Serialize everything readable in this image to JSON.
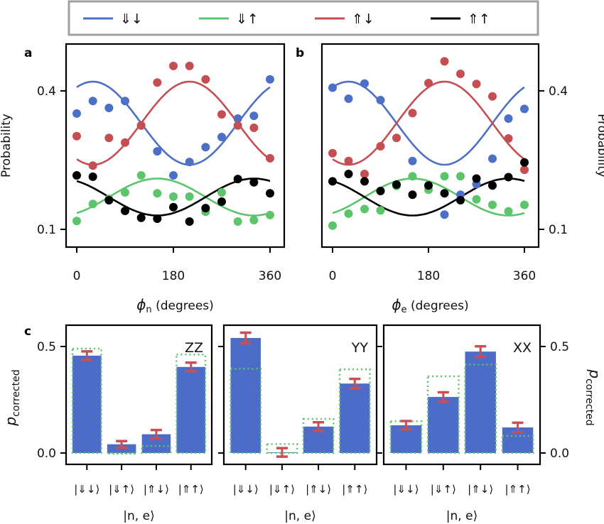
{
  "colors": {
    "blue": "#4c70c6",
    "green": "#5cc46a",
    "red": "#c44e52",
    "black": "#000000",
    "bar": "#4c6cc8",
    "err": "#c84f54",
    "ideal": "#5cc46a"
  },
  "legend": [
    {
      "label": "⇓↓",
      "color": "#4c70c6"
    },
    {
      "label": "⇓↑",
      "color": "#5cc46a"
    },
    {
      "label": "⇑↓",
      "color": "#c44e52"
    },
    {
      "label": "⇑↑",
      "color": "#000000"
    }
  ],
  "chart_data": [
    {
      "panel": "a",
      "type": "scatter+line",
      "xlabel_sym": "ϕ",
      "xlabel_sub": "n",
      "xlabel_rest": " (degrees)",
      "ylabel": "Probability",
      "xlim": [
        0,
        360
      ],
      "xticks": [
        "0",
        "180",
        "360"
      ],
      "yticks": [
        "0.4",
        "0.1"
      ],
      "ytick_values": [
        0.4,
        0.1
      ],
      "x": [
        0,
        30,
        60,
        90,
        120,
        150,
        180,
        210,
        240,
        270,
        300,
        330,
        360
      ],
      "series": [
        {
          "name": "⇓↓",
          "values": [
            0.351,
            0.378,
            0.363,
            0.378,
            0.325,
            0.269,
            0.217,
            0.246,
            0.278,
            0.3,
            0.34,
            0.346,
            0.425
          ],
          "fit": {
            "offset": 0.33,
            "amp": 0.09,
            "phase": 30
          }
        },
        {
          "name": "⇓↑",
          "values": [
            0.118,
            0.155,
            0.166,
            0.18,
            0.217,
            0.178,
            0.171,
            0.171,
            0.138,
            0.18,
            0.117,
            0.12,
            0.131
          ],
          "fit": {
            "offset": 0.17,
            "amp": 0.04,
            "phase": 150
          }
        },
        {
          "name": "⇑↓",
          "values": [
            0.302,
            0.238,
            0.298,
            0.288,
            0.325,
            0.418,
            0.454,
            0.454,
            0.425,
            0.349,
            0.325,
            0.32,
            0.254
          ],
          "fit": {
            "offset": 0.33,
            "amp": -0.09,
            "phase": 30
          }
        },
        {
          "name": "⇑↑",
          "values": [
            0.217,
            0.214,
            0.163,
            0.14,
            0.125,
            0.123,
            0.148,
            0.117,
            0.146,
            0.16,
            0.209,
            0.202,
            0.178
          ],
          "fit": {
            "offset": 0.17,
            "amp": -0.04,
            "phase": 150
          }
        }
      ]
    },
    {
      "panel": "b",
      "type": "scatter+line",
      "xlabel_sym": "ϕ",
      "xlabel_sub": "e",
      "xlabel_rest": " (degrees)",
      "ylabel": "Probability",
      "xlim": [
        0,
        360
      ],
      "xticks": [
        "0",
        "180",
        "360"
      ],
      "yticks": [
        "0.4",
        "0.1"
      ],
      "ytick_values": [
        0.4,
        0.1
      ],
      "x": [
        0,
        30,
        60,
        90,
        120,
        150,
        180,
        210,
        240,
        270,
        300,
        330,
        360
      ],
      "series": [
        {
          "name": "⇓↓",
          "values": [
            0.407,
            0.383,
            0.416,
            0.38,
            null,
            0.248,
            null,
            0.132,
            0.175,
            0.198,
            0.253,
            0.34,
            0.361
          ],
          "fit": {
            "offset": 0.33,
            "amp": 0.09,
            "phase": 30
          }
        },
        {
          "name": "⇓↑",
          "values": [
            0.108,
            0.134,
            0.144,
            0.141,
            0.194,
            0.215,
            0.186,
            0.215,
            0.215,
            0.165,
            0.153,
            0.139,
            0.153
          ],
          "fit": {
            "offset": 0.17,
            "amp": 0.04,
            "phase": 150
          }
        },
        {
          "name": "⇑↓",
          "values": [
            0.265,
            0.248,
            0.22,
            0.28,
            0.298,
            0.352,
            0.417,
            0.464,
            0.437,
            0.415,
            0.388,
            0.297,
            0.229
          ],
          "fit": {
            "offset": 0.33,
            "amp": -0.09,
            "phase": 30
          }
        },
        {
          "name": "⇑↑",
          "values": [
            0.204,
            0.22,
            0.204,
            0.183,
            0.197,
            0.175,
            0.195,
            0.178,
            0.163,
            0.21,
            0.195,
            0.213,
            0.245
          ],
          "fit": {
            "offset": 0.17,
            "amp": -0.04,
            "phase": 150
          }
        }
      ]
    },
    {
      "panel": "c",
      "type": "bar",
      "ylabel_main": "p",
      "ylabel_sub": "corrected",
      "xlabel": "|n, e⟩",
      "categories": [
        "|⇓↓⟩",
        "|⇓↑⟩",
        "|⇑↓⟩",
        "|⇑↑⟩"
      ],
      "yticks": [
        "0.5",
        "0.0"
      ],
      "ytick_values": [
        0.5,
        0.0
      ],
      "groups": [
        {
          "name": "ZZ",
          "values": [
            0.457,
            0.041,
            0.088,
            0.404
          ],
          "errors": [
            0.02,
            0.015,
            0.02,
            0.02
          ],
          "ideal": [
            0.49,
            0.0,
            0.033,
            0.462
          ]
        },
        {
          "name": "YY",
          "values": [
            0.54,
            0.003,
            0.124,
            0.326
          ],
          "errors": [
            0.025,
            0.02,
            0.02,
            0.022
          ],
          "ideal": [
            0.396,
            0.042,
            0.16,
            0.393
          ]
        },
        {
          "name": "XX",
          "values": [
            0.13,
            0.263,
            0.476,
            0.12
          ],
          "errors": [
            0.02,
            0.022,
            0.025,
            0.022
          ],
          "ideal": [
            0.149,
            0.36,
            0.415,
            0.08
          ]
        }
      ]
    }
  ]
}
